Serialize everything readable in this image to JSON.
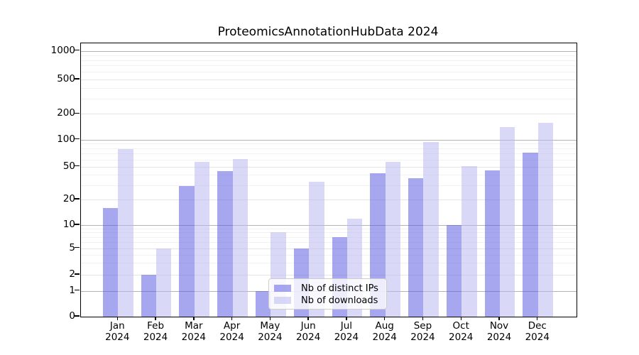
{
  "figure": {
    "background": "#ffffff"
  },
  "chart_data": {
    "type": "bar",
    "title": "ProteomicsAnnotationHubData 2024",
    "categories": [
      "Jan 2024",
      "Feb 2024",
      "Mar 2024",
      "Apr 2024",
      "May 2024",
      "Jun 2024",
      "Jul 2024",
      "Aug 2024",
      "Sep 2024",
      "Oct 2024",
      "Nov 2024",
      "Dec 2024"
    ],
    "series": [
      {
        "name": "Nb of distinct IPs",
        "values": [
          16,
          2,
          29,
          44,
          1,
          5,
          7,
          42,
          36,
          10,
          45,
          72
        ]
      },
      {
        "name": "Nb of downloads",
        "values": [
          78,
          5,
          57,
          61,
          8,
          33,
          12,
          56,
          94,
          51,
          141,
          156
        ]
      }
    ],
    "xlabel": "",
    "ylabel": "",
    "yscale": "symlog",
    "yticks": [
      0,
      1,
      2,
      5,
      10,
      20,
      50,
      100,
      200,
      500,
      1000
    ],
    "ylim": [
      0,
      1200
    ],
    "grid": true,
    "legend_position": "lower center"
  },
  "colors": {
    "bar_distinct_ips": "rgba(95,95,228,0.55)",
    "bar_distinct_ips_hex": "#a7a7f0",
    "bar_downloads": "rgba(186,186,240,0.55)",
    "bar_downloads_hex": "#d9d9f7",
    "grid_major": "rgba(0,0,0,0.30)",
    "grid_labeled": "rgba(0,0,0,0.10)",
    "grid_minor": "rgba(0,0,0,0.05)",
    "spine": "#000000",
    "legend_bg": "rgba(255,255,255,0.8)",
    "legend_border": "#cccccc",
    "text": "#000000"
  }
}
